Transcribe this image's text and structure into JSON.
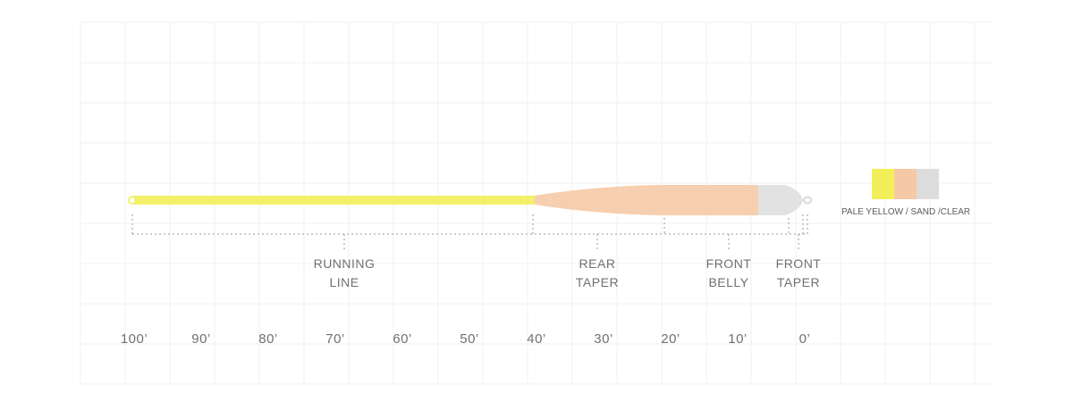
{
  "diagram": {
    "segments": [
      {
        "id": "running-line",
        "lines": [
          "RUNNING",
          "LINE"
        ]
      },
      {
        "id": "rear-taper",
        "lines": [
          "REAR",
          "TAPER"
        ]
      },
      {
        "id": "front-belly",
        "lines": [
          "FRONT",
          "BELLY"
        ]
      },
      {
        "id": "front-taper",
        "lines": [
          "FRONT",
          "TAPER"
        ]
      }
    ],
    "ticks": [
      "100’",
      "90’",
      "80’",
      "70’",
      "60’",
      "50’",
      "40’",
      "30’",
      "20’",
      "10’",
      "0’"
    ],
    "line_colors": {
      "running_line": "#f4f06a",
      "taper": "#f6cfb0",
      "tip": "#e2e2e2"
    },
    "legend": {
      "label": "PALE YELLOW / SAND /CLEAR",
      "swatches": [
        "#f2ef5a",
        "#f6c9a6",
        "#dcdcdc"
      ]
    }
  }
}
